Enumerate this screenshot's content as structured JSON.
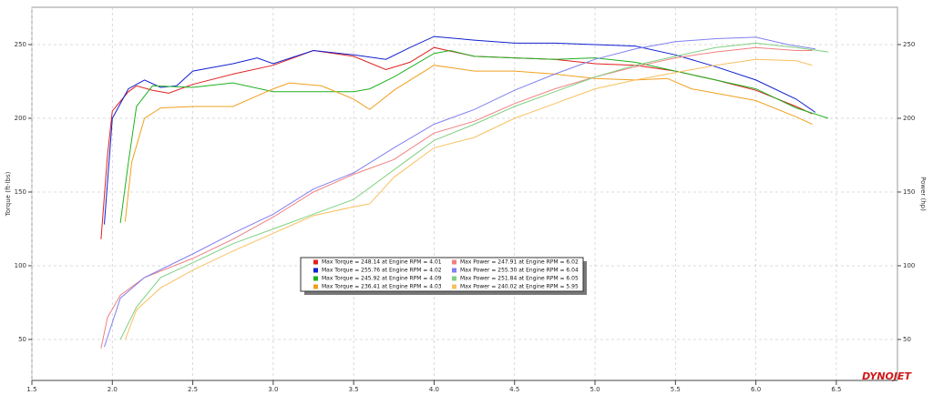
{
  "chart_data": {
    "type": "line",
    "y_label": "Torque (ft-lbs)",
    "y2_label": "Power (hp)",
    "logo": "DYNOJET",
    "xlim": [
      1.5,
      6.88
    ],
    "xticks": [
      1.5,
      {
        "value": 2,
        "label": "2.0"
      },
      2.5,
      {
        "value": 3,
        "label": "3.0"
      },
      3.5,
      {
        "value": 4,
        "label": "4.0"
      },
      4.5,
      {
        "value": 5,
        "label": "5.0"
      },
      5.5,
      {
        "value": 6,
        "label": "6.0"
      },
      6.5
    ],
    "ylim": [
      22.2,
      275.3
    ],
    "yticks": [
      50,
      100,
      150,
      200,
      250
    ],
    "y2lim": [
      22.2,
      275.3
    ],
    "y2ticks": [
      50,
      100,
      150,
      200,
      250
    ],
    "grid": true,
    "series": [
      {
        "name": "Max Torque = 248.14 at Engine RPM = 4.01",
        "color": "#e02020",
        "x": [
          1.93,
          1.97,
          2.0,
          2.1,
          2.15,
          2.25,
          2.35,
          2.5,
          2.75,
          3.0,
          3.25,
          3.5,
          3.7,
          3.85,
          4.0,
          4.25,
          4.5,
          4.75,
          5.0,
          5.25,
          5.5,
          5.75,
          6.0,
          6.25,
          6.35
        ],
        "values": [
          118,
          175,
          205,
          218,
          222,
          219,
          217,
          223,
          230,
          236,
          246,
          242,
          233,
          238,
          248,
          242,
          241,
          240,
          237,
          236,
          232,
          226,
          219,
          208,
          203
        ]
      },
      {
        "name": "Max Torque = 255.76 at Engine RPM = 4.02",
        "color": "#1020d0",
        "x": [
          1.95,
          2.0,
          2.1,
          2.2,
          2.3,
          2.4,
          2.5,
          2.75,
          2.9,
          3.0,
          3.25,
          3.5,
          3.7,
          3.85,
          4.0,
          4.25,
          4.5,
          4.75,
          5.0,
          5.25,
          5.5,
          5.75,
          6.0,
          6.25,
          6.37
        ],
        "values": [
          128,
          200,
          220,
          226,
          221,
          222,
          232,
          237,
          241,
          237,
          246,
          243,
          240,
          248,
          255.5,
          253,
          251,
          251,
          250,
          249,
          243,
          235,
          226,
          213,
          204
        ]
      },
      {
        "name": "Max Torque = 245.92 at Engine RPM = 4.09",
        "color": "#20b020",
        "x": [
          2.05,
          2.1,
          2.15,
          2.25,
          2.5,
          2.75,
          3.0,
          3.25,
          3.5,
          3.6,
          3.75,
          4.0,
          4.1,
          4.25,
          4.5,
          4.75,
          5.0,
          5.25,
          5.5,
          5.75,
          6.0,
          6.25,
          6.45
        ],
        "values": [
          129,
          170,
          208,
          222,
          221,
          224,
          218,
          218,
          218,
          220,
          228,
          244,
          246,
          242,
          241,
          240,
          241,
          238,
          232,
          226,
          220,
          207,
          200
        ]
      },
      {
        "name": "Max Torque = 236.41 at Engine RPM = 4.03",
        "color": "#f0a020",
        "x": [
          2.08,
          2.12,
          2.2,
          2.3,
          2.5,
          2.75,
          3.0,
          3.1,
          3.3,
          3.5,
          3.6,
          3.75,
          4.0,
          4.25,
          4.5,
          4.75,
          5.0,
          5.25,
          5.45,
          5.6,
          5.75,
          6.0,
          6.25,
          6.35
        ],
        "values": [
          130,
          170,
          200,
          207,
          208,
          208,
          220,
          224,
          222,
          213,
          206,
          219,
          236,
          232,
          232,
          230,
          227,
          226,
          227,
          220,
          217,
          212,
          201,
          196
        ]
      },
      {
        "name": "Max Power = 247.91 at Engine RPM = 6.02",
        "color": "#f08080",
        "axis": "y2",
        "x": [
          1.93,
          1.97,
          2.05,
          2.2,
          2.5,
          2.75,
          3.0,
          3.25,
          3.5,
          3.75,
          4.0,
          4.25,
          4.5,
          4.75,
          5.0,
          5.25,
          5.5,
          5.75,
          6.0,
          6.25,
          6.35
        ],
        "values": [
          44,
          65,
          80,
          92,
          105,
          118,
          133,
          150,
          162,
          172,
          190,
          198,
          210,
          220,
          228,
          235,
          241,
          245,
          248,
          246,
          246
        ]
      },
      {
        "name": "Max Power = 255.30 at Engine RPM = 6.04",
        "color": "#8080f0",
        "axis": "y2",
        "x": [
          1.95,
          2.05,
          2.2,
          2.5,
          2.75,
          3.0,
          3.25,
          3.5,
          3.75,
          4.0,
          4.25,
          4.5,
          4.75,
          5.0,
          5.25,
          5.5,
          5.75,
          6.0,
          6.2,
          6.37
        ],
        "values": [
          45,
          78,
          92,
          108,
          122,
          135,
          152,
          163,
          180,
          196,
          206,
          219,
          230,
          240,
          247,
          252,
          254,
          255,
          250,
          247
        ]
      },
      {
        "name": "Max Power = 251.84 at Engine RPM = 6.05",
        "color": "#80d080",
        "axis": "y2",
        "x": [
          2.05,
          2.15,
          2.3,
          2.5,
          2.75,
          3.0,
          3.25,
          3.5,
          3.75,
          4.0,
          4.25,
          4.5,
          4.75,
          5.0,
          5.25,
          5.5,
          5.75,
          6.0,
          6.25,
          6.45
        ],
        "values": [
          50,
          72,
          92,
          102,
          115,
          125,
          135,
          145,
          165,
          185,
          196,
          208,
          218,
          228,
          236,
          242,
          248,
          251,
          248,
          245
        ]
      },
      {
        "name": "Max Power = 240.02 at Engine RPM = 5.95",
        "color": "#f8c060",
        "axis": "y2",
        "x": [
          2.08,
          2.15,
          2.3,
          2.5,
          2.75,
          3.0,
          3.25,
          3.5,
          3.6,
          3.75,
          4.0,
          4.25,
          4.5,
          4.75,
          5.0,
          5.25,
          5.5,
          5.75,
          6.0,
          6.25,
          6.35
        ],
        "values": [
          50,
          70,
          85,
          97,
          110,
          122,
          134,
          140,
          142,
          160,
          180,
          187,
          200,
          210,
          220,
          226,
          231,
          236,
          240,
          239,
          236
        ]
      }
    ]
  }
}
